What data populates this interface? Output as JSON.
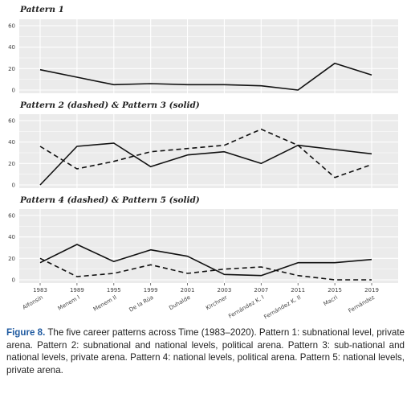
{
  "chart_data": {
    "type": "line",
    "x_ticks": [
      "1983",
      "1989",
      "1995",
      "1999",
      "2001",
      "2003",
      "2007",
      "2011",
      "2015",
      "2019"
    ],
    "x_names": [
      "Alfonsín",
      "Menem I",
      "Menem II",
      "De la Rúa",
      "Duhalde",
      "Kirchner",
      "Fernández K. I",
      "Fernández K. II",
      "Macri",
      "Fernández"
    ],
    "panels": [
      {
        "title": "Pattern 1",
        "ylim": [
          0,
          60
        ],
        "yticks": [
          "0",
          "20",
          "40",
          "60"
        ],
        "series": [
          {
            "style": "solid",
            "values": [
              19,
              12,
              5,
              6,
              5,
              5,
              4,
              0,
              25,
              14
            ]
          }
        ]
      },
      {
        "title": "Pattern 2 (dashed) & Pattern 3 (solid)",
        "ylim": [
          0,
          60
        ],
        "yticks": [
          "0",
          "20",
          "40",
          "60"
        ],
        "series": [
          {
            "style": "dashed",
            "values": [
              36,
              15,
              22,
              31,
              34,
              37,
              52,
              37,
              7,
              19
            ]
          },
          {
            "style": "solid",
            "values": [
              0,
              36,
              39,
              17,
              28,
              31,
              20,
              37,
              33,
              29
            ]
          }
        ]
      },
      {
        "title": "Pattern 4 (dashed) & Pattern 5 (solid)",
        "ylim": [
          0,
          60
        ],
        "yticks": [
          "0",
          "20",
          "40",
          "60"
        ],
        "series": [
          {
            "style": "dashed",
            "values": [
              20,
              3,
              6,
              14,
              6,
              10,
              12,
              4,
              0,
              0
            ]
          },
          {
            "style": "solid",
            "values": [
              16,
              33,
              17,
              28,
              22,
              5,
              4,
              16,
              16,
              19
            ]
          }
        ]
      }
    ]
  },
  "caption": {
    "label": "Figure 8.",
    "text": " The five career patterns across Time (1983–2020). Pattern 1: subnational level, private arena. Pattern 2: subnational and national levels, political arena. Pattern 3: sub-national and national levels, private arena. Pattern 4: national levels, political arena. Pattern 5: national levels, private arena."
  },
  "colors": {
    "panel_bg": "#ebebeb",
    "grid": "#ffffff",
    "line": "#111111",
    "caption_label": "#1f5aa0"
  }
}
